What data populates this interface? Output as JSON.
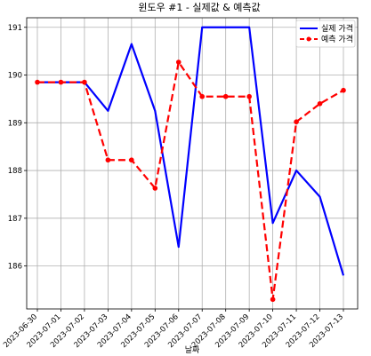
{
  "chart_data": {
    "type": "line",
    "title": "윈도우 #1 - 실제값 & 예측값",
    "xlabel": "날짜",
    "ylabel": "",
    "x": [
      "2023-06-30",
      "2023-07-01",
      "2023-07-02",
      "2023-07-03",
      "2023-07-04",
      "2023-07-05",
      "2023-07-06",
      "2023-07-07",
      "2023-07-08",
      "2023-07-09",
      "2023-07-10",
      "2023-07-11",
      "2023-07-12",
      "2023-07-13"
    ],
    "ylim": [
      185.1,
      191.2
    ],
    "yticks": [
      186,
      187,
      188,
      189,
      190,
      191
    ],
    "grid": true,
    "legend_position": "top-right",
    "series": [
      {
        "name": "실제 가격",
        "color": "#0000ff",
        "style": "solid",
        "marker": false,
        "values": [
          189.85,
          189.85,
          189.85,
          189.25,
          190.65,
          189.25,
          186.4,
          191.0,
          191.0,
          191.0,
          186.9,
          188.0,
          187.45,
          185.8
        ]
      },
      {
        "name": "예측 가격",
        "color": "#ff0000",
        "style": "dashed",
        "marker": true,
        "values": [
          189.85,
          189.85,
          189.85,
          188.22,
          188.22,
          187.63,
          190.27,
          189.55,
          189.55,
          189.55,
          185.3,
          189.02,
          189.4,
          189.68
        ]
      }
    ]
  }
}
